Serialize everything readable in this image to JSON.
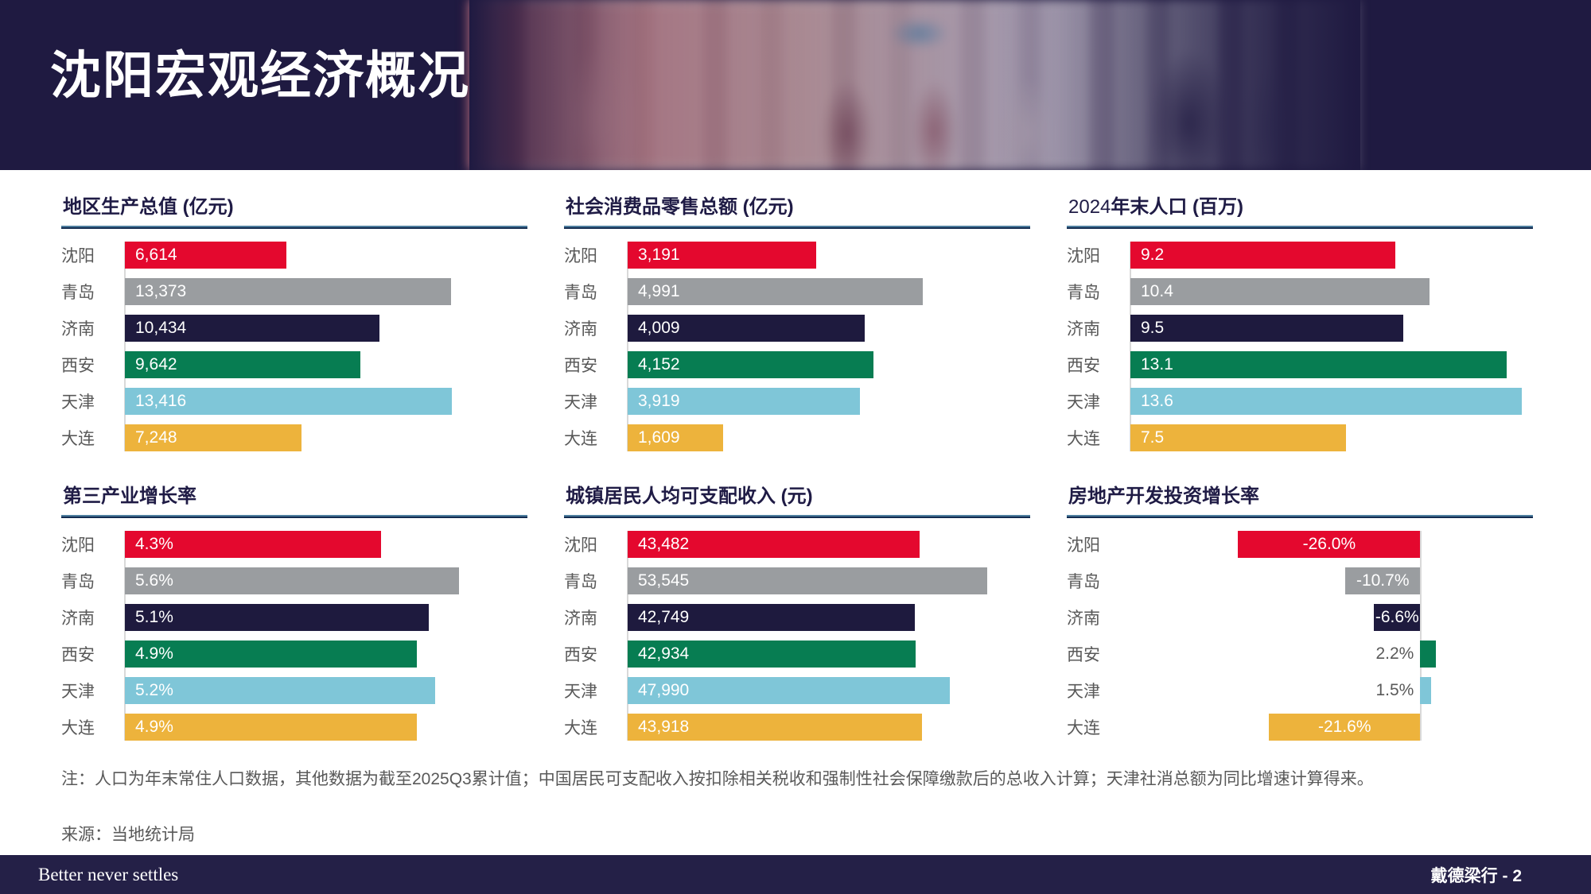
{
  "slide": {
    "title": "沈阳宏观经济概况",
    "note": "注：人口为年末常住人口数据，其他数据为截至2025Q3累计值；中国居民可支配收入按扣除相关税收和强制性社会保障缴款后的总收入计算；天津社消总额为同比增速计算得来。",
    "source": "来源：当地统计局",
    "footer": {
      "tagline": "Better never settles",
      "brand_page": "戴德梁行 - 2"
    }
  },
  "colors": {
    "header_bg": "#1f1a41",
    "footer_bg": "#242047",
    "title_navy": "#1f1b45",
    "label_gray": "#595959",
    "axis_gray": "#d9d9d9",
    "series": [
      "#e4082e",
      "#9a9da0",
      "#1e1a3e",
      "#077d52",
      "#7fc6d8",
      "#edb33c"
    ],
    "series_names": [
      "shenyang-red",
      "qingdao-gray",
      "jinan-navy",
      "xian-green",
      "tianjin-lightblue",
      "dalian-yellow"
    ]
  },
  "cities": [
    "沈阳",
    "青岛",
    "济南",
    "西安",
    "天津",
    "大连"
  ],
  "chart_data": [
    {
      "type": "bar",
      "orientation": "horizontal",
      "title_runs": [
        {
          "text": "地区生产总值 (亿元)",
          "bold": true
        }
      ],
      "title": "地区生产总值 (亿元)",
      "categories": [
        "沈阳",
        "青岛",
        "济南",
        "西安",
        "天津",
        "大连"
      ],
      "values": [
        6614,
        13373,
        10434,
        9642,
        13416,
        7248
      ],
      "labels": [
        "6,614",
        "13,373",
        "10,434",
        "9,642",
        "13,416",
        "7,248"
      ],
      "axis_max": 16500,
      "grid": false,
      "legend": "none"
    },
    {
      "type": "bar",
      "orientation": "horizontal",
      "title_runs": [
        {
          "text": "社会消费品零售总额 (亿元)",
          "bold": true
        }
      ],
      "title": "社会消费品零售总额 (亿元)",
      "categories": [
        "沈阳",
        "青岛",
        "济南",
        "西安",
        "天津",
        "大连"
      ],
      "values": [
        3191,
        4991,
        4009,
        4152,
        3919,
        1609
      ],
      "labels": [
        "3,191",
        "4,991",
        "4,009",
        "4,152",
        "3,919",
        "1,609"
      ],
      "axis_max": 6800,
      "grid": false,
      "legend": "none"
    },
    {
      "type": "bar",
      "orientation": "horizontal",
      "title_runs": [
        {
          "text": "2024",
          "bold": false
        },
        {
          "text": "年末人口 (百万)",
          "bold": true
        }
      ],
      "title": "2024年末人口 (百万)",
      "categories": [
        "沈阳",
        "青岛",
        "济南",
        "西安",
        "天津",
        "大连"
      ],
      "values": [
        9.2,
        10.4,
        9.5,
        13.1,
        13.6,
        7.5
      ],
      "labels": [
        "9.2",
        "10.4",
        "9.5",
        "13.1",
        "13.6",
        "7.5"
      ],
      "axis_max": 14,
      "grid": false,
      "legend": "none"
    },
    {
      "type": "bar",
      "orientation": "horizontal",
      "title_runs": [
        {
          "text": "第三产业增长率",
          "bold": true
        }
      ],
      "title": "第三产业增长率",
      "categories": [
        "沈阳",
        "青岛",
        "济南",
        "西安",
        "天津",
        "大连"
      ],
      "values": [
        4.3,
        5.6,
        5.1,
        4.9,
        5.2,
        4.9
      ],
      "labels": [
        "4.3%",
        "5.6%",
        "5.1%",
        "4.9%",
        "5.2%",
        "4.9%"
      ],
      "axis_max": 6.75,
      "grid": false,
      "legend": "none"
    },
    {
      "type": "bar",
      "orientation": "horizontal",
      "title_runs": [
        {
          "text": "城镇居民人均可支配收入 (元)",
          "bold": true
        }
      ],
      "title": "城镇居民人均可支配收入 (元)",
      "categories": [
        "沈阳",
        "青岛",
        "济南",
        "西安",
        "天津",
        "大连"
      ],
      "values": [
        43482,
        53545,
        42749,
        42934,
        47990,
        43918
      ],
      "labels": [
        "43,482",
        "53,545",
        "42,749",
        "42,934",
        "47,990",
        "43,918"
      ],
      "axis_max": 60000,
      "grid": false,
      "legend": "none"
    },
    {
      "type": "bar",
      "orientation": "horizontal",
      "diverging": true,
      "title_runs": [
        {
          "text": "房地产开发投资增长率",
          "bold": true
        }
      ],
      "title": "房地产开发投资增长率",
      "categories": [
        "沈阳",
        "青岛",
        "济南",
        "西安",
        "天津",
        "大连"
      ],
      "values": [
        -26.0,
        -10.7,
        -6.6,
        2.2,
        1.5,
        -21.6
      ],
      "labels": [
        "-26.0%",
        "-10.7%",
        "-6.6%",
        "2.2%",
        "1.5%",
        "-21.6%"
      ],
      "axis_pos_pct": 72,
      "pct_per_unit": 1.74,
      "grid": false,
      "legend": "none"
    }
  ]
}
